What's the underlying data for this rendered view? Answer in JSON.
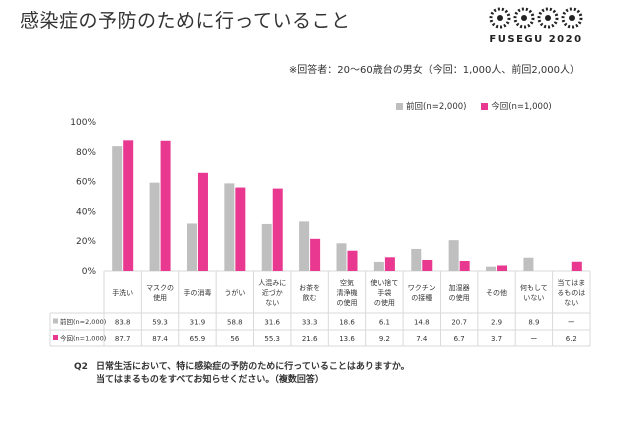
{
  "header": {
    "title": "感染症の予防のために行っていること",
    "logo_text": "FUSEGU 2020",
    "subtitle": "※回答者：20～60歳台の男女（今回：1,000人、前回2,000人）"
  },
  "colors": {
    "previous": "#bfbfbf",
    "current": "#e8388f",
    "axis": "#d9d9d9",
    "text": "#333333"
  },
  "legend": [
    {
      "label": "前回(n=2,000)",
      "color": "#bfbfbf"
    },
    {
      "label": "今回(n=1,000)",
      "color": "#e8388f"
    }
  ],
  "chart_data": {
    "type": "bar",
    "ylim": [
      0,
      100
    ],
    "y_ticks": [
      "0%",
      "20%",
      "40%",
      "60%",
      "80%",
      "100%"
    ],
    "categories": [
      [
        "手洗い"
      ],
      [
        "マスクの",
        "使用"
      ],
      [
        "手の消毒"
      ],
      [
        "うがい"
      ],
      [
        "人混みに",
        "近づか",
        "ない"
      ],
      [
        "お茶を",
        "飲む"
      ],
      [
        "空気",
        "清浄機",
        "の使用"
      ],
      [
        "使い捨て",
        "手袋",
        "の使用"
      ],
      [
        "ワクチン",
        "の接種"
      ],
      [
        "加湿器",
        "の使用"
      ],
      [
        "その他"
      ],
      [
        "何もして",
        "いない"
      ],
      [
        "当てはま",
        "るものは",
        "ない"
      ]
    ],
    "series": [
      {
        "name": "前回(n=2,000)",
        "values": [
          83.8,
          59.3,
          31.9,
          58.8,
          31.6,
          33.3,
          18.6,
          6.1,
          14.8,
          20.7,
          2.9,
          8.9,
          null
        ],
        "labels": [
          "83.8",
          "59.3",
          "31.9",
          "58.8",
          "31.6",
          "33.3",
          "18.6",
          "6.1",
          "14.8",
          "20.7",
          "2.9",
          "8.9",
          "ー"
        ]
      },
      {
        "name": "今回(n=1,000)",
        "values": [
          87.7,
          87.4,
          65.9,
          56,
          55.3,
          21.6,
          13.6,
          9.2,
          7.4,
          6.7,
          3.7,
          null,
          6.2
        ],
        "labels": [
          "87.7",
          "87.4",
          "65.9",
          "56",
          "55.3",
          "21.6",
          "13.6",
          "9.2",
          "7.4",
          "6.7",
          "3.7",
          "ー",
          "6.2"
        ]
      }
    ]
  },
  "question": {
    "number": "Q2",
    "line1": "日常生活において、特に感染症の予防のために行っていることはありますか。",
    "line2": "当てはまるものをすべてお知らせください。（複数回答）"
  }
}
